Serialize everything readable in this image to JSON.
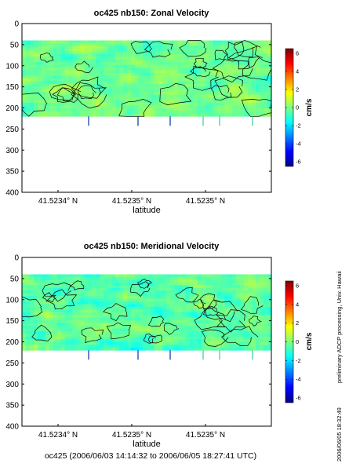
{
  "chart_data": [
    {
      "type": "heatmap",
      "title": "oc425 nb150: Zonal Velocity",
      "xlabel": "latitude",
      "ylabel": "",
      "x_tick_labels": [
        "41.5234° N",
        "41.5235° N",
        "41.5235° N"
      ],
      "y_ticks": [
        0,
        50,
        100,
        150,
        200,
        250,
        300,
        350,
        400
      ],
      "ylim": [
        0,
        400
      ],
      "y_inverted": true,
      "data_depth_range": [
        40,
        220
      ],
      "colorbar": {
        "label": "cm/s",
        "ticks": [
          6,
          4,
          2,
          0,
          -2,
          -4,
          -6
        ],
        "range": [
          -6.5,
          6.5
        ]
      },
      "typical_value_range": [
        -1.5,
        1.2
      ]
    },
    {
      "type": "heatmap",
      "title": "oc425 nb150: Meridional Velocity",
      "xlabel": "latitude",
      "ylabel": "",
      "x_tick_labels": [
        "41.5234° N",
        "41.5235° N",
        "41.5235° N"
      ],
      "y_ticks": [
        0,
        50,
        100,
        150,
        200,
        250,
        300,
        350,
        400
      ],
      "ylim": [
        0,
        400
      ],
      "y_inverted": true,
      "data_depth_range": [
        40,
        220
      ],
      "colorbar": {
        "label": "cm/s",
        "ticks": [
          6,
          4,
          2,
          0,
          -2,
          -4,
          -6
        ],
        "range": [
          -6.5,
          6.5
        ]
      },
      "typical_value_range": [
        -2.0,
        1.2
      ]
    }
  ],
  "side_text": "preliminary ADCP processing,   Univ. Hawaii",
  "side_date": "2006/06/05 18:32:49",
  "footer": "oc425 (2006/06/03 14:14:32 to 2006/06/05 18:27:41 UTC)",
  "colors": {
    "line": "#000000",
    "background": "#ffffff"
  }
}
